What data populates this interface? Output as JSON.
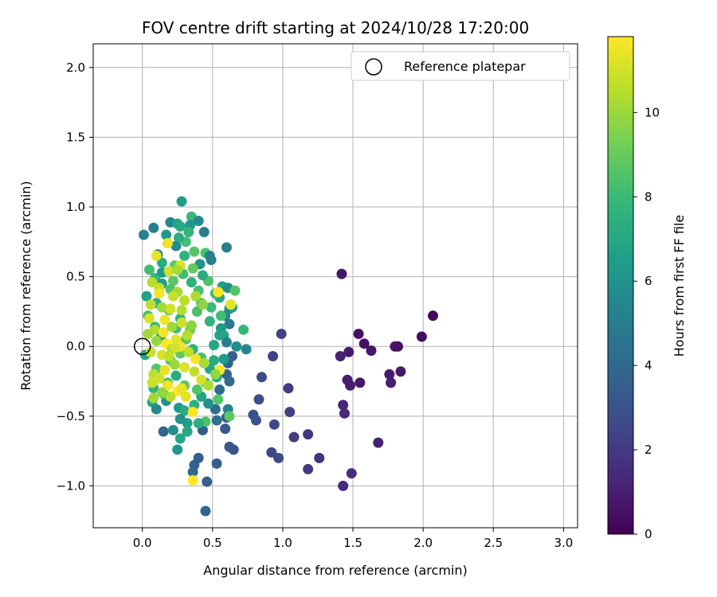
{
  "chart_data": {
    "type": "scatter",
    "title": "FOV centre drift starting at 2024/10/28 17:20:00",
    "xlabel": "Angular distance from reference (arcmin)",
    "ylabel": "Rotation from reference (arcmin)",
    "xlim": [
      -0.35,
      3.1
    ],
    "ylim": [
      -1.3,
      2.17
    ],
    "x_ticks": [
      0.0,
      0.5,
      1.0,
      1.5,
      2.0,
      2.5,
      3.0
    ],
    "x_tick_labels": [
      "0.0",
      "0.5",
      "1.0",
      "1.5",
      "2.0",
      "2.5",
      "3.0"
    ],
    "y_ticks": [
      -1.0,
      -0.5,
      0.0,
      0.5,
      1.0,
      1.5,
      2.0
    ],
    "y_tick_labels": [
      "−1.0",
      "−0.5",
      "0.0",
      "0.5",
      "1.0",
      "1.5",
      "2.0"
    ],
    "grid": true,
    "legend": {
      "placement": "top-right",
      "entries": [
        "Reference platepar"
      ]
    },
    "colorbar": {
      "label": "Hours from first FF file",
      "range": [
        0,
        11.8
      ],
      "ticks": [
        0,
        2,
        4,
        6,
        8,
        10
      ],
      "tick_labels": [
        "0",
        "2",
        "4",
        "6",
        "8",
        "10"
      ],
      "colormap": "viridis"
    },
    "reference_point": {
      "x": 0.0,
      "y": 0.0
    },
    "series": [
      {
        "points": [
          [
            2.07,
            0.22
          ],
          [
            1.99,
            0.07
          ],
          [
            1.82,
            0.0
          ],
          [
            1.8,
            0.0
          ],
          [
            1.84,
            -0.18
          ],
          [
            1.76,
            -0.2
          ],
          [
            1.77,
            -0.26
          ],
          [
            1.68,
            -0.69
          ],
          [
            1.63,
            -0.03
          ],
          [
            1.58,
            0.02
          ],
          [
            1.54,
            0.09
          ],
          [
            1.55,
            -0.26
          ],
          [
            1.47,
            -0.04
          ],
          [
            1.46,
            -0.24
          ],
          [
            1.48,
            -0.28
          ],
          [
            1.42,
            0.52
          ],
          [
            1.41,
            -0.07
          ],
          [
            1.43,
            -0.42
          ],
          [
            1.44,
            -0.48
          ],
          [
            1.43,
            -1.0
          ],
          [
            1.49,
            -0.91
          ],
          [
            1.26,
            -0.8
          ],
          [
            1.18,
            -0.63
          ],
          [
            1.18,
            -0.88
          ],
          [
            1.08,
            -0.65
          ],
          [
            1.04,
            -0.3
          ],
          [
            1.05,
            -0.47
          ],
          [
            0.99,
            0.09
          ],
          [
            0.93,
            -0.07
          ],
          [
            0.94,
            -0.56
          ],
          [
            0.92,
            -0.76
          ],
          [
            0.97,
            -0.8
          ],
          [
            0.85,
            -0.22
          ],
          [
            0.83,
            -0.38
          ],
          [
            0.79,
            -0.49
          ],
          [
            0.81,
            -0.53
          ],
          [
            0.62,
            -0.72
          ],
          [
            0.65,
            -0.74
          ],
          [
            0.6,
            -0.51
          ],
          [
            0.59,
            -0.59
          ],
          [
            0.53,
            -0.84
          ],
          [
            0.43,
            -0.6
          ],
          [
            0.46,
            -0.97
          ],
          [
            0.45,
            -1.18
          ],
          [
            0.4,
            -0.8
          ],
          [
            0.37,
            -0.85
          ],
          [
            0.36,
            -0.9
          ],
          [
            0.15,
            -0.61
          ],
          [
            0.64,
            -0.07
          ],
          [
            0.61,
            -0.12
          ],
          [
            0.6,
            -0.2
          ],
          [
            0.62,
            -0.25
          ],
          [
            0.55,
            -0.31
          ],
          [
            0.52,
            -0.45
          ],
          [
            0.53,
            -0.53
          ]
        ],
        "hours": [
          0.3,
          0.4,
          0.5,
          0.6,
          0.8,
          0.9,
          1.0,
          1.1,
          0.7,
          0.6,
          0.5,
          0.8,
          0.9,
          1.0,
          0.9,
          0.7,
          1.1,
          1.2,
          1.3,
          1.4,
          1.5,
          1.8,
          1.9,
          2.0,
          2.1,
          2.0,
          2.2,
          2.3,
          2.4,
          2.5,
          2.6,
          2.7,
          2.6,
          2.8,
          2.9,
          3.0,
          3.2,
          3.0,
          3.3,
          3.2,
          3.6,
          3.4,
          3.6,
          3.8,
          3.5,
          3.7,
          3.9,
          3.9,
          3.6,
          3.7,
          3.8,
          4.0,
          4.1,
          4.2,
          4.4
        ]
      },
      {
        "points": [
          [
            0.28,
            1.04
          ],
          [
            0.35,
            0.93
          ],
          [
            0.4,
            0.9
          ],
          [
            0.34,
            0.87
          ],
          [
            0.2,
            0.89
          ],
          [
            0.25,
            0.88
          ],
          [
            0.27,
            0.86
          ],
          [
            0.08,
            0.85
          ],
          [
            0.44,
            0.82
          ],
          [
            0.17,
            0.8
          ],
          [
            0.01,
            0.8
          ],
          [
            0.33,
            0.82
          ],
          [
            0.31,
            0.75
          ],
          [
            0.26,
            0.78
          ],
          [
            0.24,
            0.72
          ],
          [
            0.6,
            0.71
          ],
          [
            0.45,
            0.67
          ],
          [
            0.49,
            0.62
          ],
          [
            0.11,
            0.66
          ],
          [
            0.14,
            0.6
          ],
          [
            0.3,
            0.65
          ],
          [
            0.37,
            0.68
          ],
          [
            0.48,
            0.65
          ],
          [
            0.41,
            0.59
          ],
          [
            0.05,
            0.55
          ],
          [
            0.09,
            0.49
          ],
          [
            0.14,
            0.45
          ],
          [
            0.22,
            0.47
          ],
          [
            0.29,
            0.52
          ],
          [
            0.35,
            0.46
          ],
          [
            0.47,
            0.47
          ],
          [
            0.57,
            0.43
          ],
          [
            0.61,
            0.42
          ],
          [
            0.66,
            0.4
          ],
          [
            0.55,
            0.35
          ],
          [
            0.49,
            0.28
          ],
          [
            0.62,
            0.27
          ],
          [
            0.59,
            0.22
          ],
          [
            0.62,
            0.16
          ],
          [
            0.56,
            0.13
          ],
          [
            0.58,
            0.08
          ],
          [
            0.6,
            0.03
          ],
          [
            0.51,
            0.01
          ],
          [
            0.03,
            0.36
          ],
          [
            0.1,
            0.31
          ],
          [
            0.04,
            0.22
          ],
          [
            0.09,
            0.14
          ],
          [
            0.13,
            0.06
          ],
          [
            0.02,
            -0.06
          ],
          [
            0.1,
            -0.16
          ],
          [
            0.08,
            -0.3
          ],
          [
            0.07,
            -0.4
          ],
          [
            0.1,
            -0.45
          ],
          [
            0.17,
            -0.39
          ],
          [
            0.26,
            -0.44
          ],
          [
            0.3,
            -0.46
          ],
          [
            0.37,
            -0.42
          ],
          [
            0.42,
            -0.36
          ],
          [
            0.47,
            -0.41
          ],
          [
            0.54,
            -0.38
          ],
          [
            0.61,
            -0.45
          ],
          [
            0.62,
            -0.5
          ],
          [
            0.45,
            -0.54
          ],
          [
            0.4,
            -0.55
          ],
          [
            0.32,
            -0.55
          ],
          [
            0.27,
            -0.52
          ],
          [
            0.22,
            -0.6
          ],
          [
            0.32,
            -0.61
          ],
          [
            0.27,
            -0.66
          ],
          [
            0.25,
            -0.74
          ],
          [
            0.74,
            -0.02
          ],
          [
            0.67,
            0.0
          ],
          [
            0.72,
            0.12
          ],
          [
            0.64,
            0.28
          ],
          [
            0.56,
            0.22
          ],
          [
            0.48,
            0.18
          ],
          [
            0.42,
            0.31
          ],
          [
            0.39,
            0.25
          ],
          [
            0.27,
            0.2
          ],
          [
            0.19,
            0.26
          ],
          [
            0.24,
            0.13
          ],
          [
            0.31,
            0.05
          ],
          [
            0.36,
            -0.02
          ],
          [
            0.42,
            -0.08
          ],
          [
            0.48,
            -0.16
          ],
          [
            0.53,
            -0.22
          ],
          [
            0.45,
            -0.26
          ],
          [
            0.39,
            -0.31
          ],
          [
            0.3,
            -0.28
          ],
          [
            0.24,
            -0.21
          ],
          [
            0.18,
            -0.26
          ],
          [
            0.15,
            -0.34
          ],
          [
            0.2,
            -0.1
          ],
          [
            0.27,
            -0.05
          ],
          [
            0.34,
            0.12
          ],
          [
            0.4,
            0.4
          ],
          [
            0.52,
            0.38
          ],
          [
            0.2,
            0.41
          ],
          [
            0.14,
            0.53
          ],
          [
            0.23,
            0.58
          ],
          [
            0.36,
            0.56
          ],
          [
            0.43,
            0.51
          ],
          [
            0.58,
            -0.09
          ],
          [
            0.51,
            -0.1
          ],
          [
            0.55,
            0.08
          ]
        ],
        "hours": [
          6.6,
          7.9,
          5.6,
          6.2,
          5.4,
          6.8,
          7.1,
          5.2,
          5.0,
          6.3,
          5.3,
          7.7,
          8.2,
          7.4,
          5.6,
          5.1,
          8.4,
          4.9,
          5.5,
          7.3,
          7.6,
          8.6,
          5.3,
          6.0,
          8.2,
          7.9,
          6.5,
          8.8,
          8.1,
          7.5,
          8.4,
          6.7,
          5.8,
          8.6,
          7.2,
          8.0,
          5.9,
          5.4,
          4.8,
          6.4,
          7.0,
          5.1,
          6.9,
          6.8,
          7.4,
          8.3,
          7.7,
          6.1,
          7.0,
          8.5,
          7.8,
          6.9,
          5.6,
          5.9,
          6.3,
          7.2,
          7.5,
          6.8,
          6.0,
          8.6,
          5.2,
          8.8,
          8.5,
          7.4,
          6.6,
          6.1,
          5.8,
          7.1,
          7.0,
          6.2,
          5.5,
          5.8,
          7.9,
          6.4,
          8.2,
          7.5,
          8.0,
          8.4,
          7.7,
          8.9,
          8.1,
          8.7,
          7.6,
          8.3,
          6.9,
          7.0,
          8.0,
          8.5,
          8.8,
          7.3,
          8.4,
          8.2,
          8.6,
          8.9,
          9.0,
          8.3,
          7.9,
          8.5,
          6.4,
          8.7,
          8.9,
          7.3,
          6.5,
          7.2,
          6.8
        ]
      },
      {
        "points": [
          [
            0.18,
            0.74
          ],
          [
            0.1,
            0.65
          ],
          [
            0.27,
            0.58
          ],
          [
            0.19,
            0.54
          ],
          [
            0.07,
            0.46
          ],
          [
            0.12,
            0.42
          ],
          [
            0.25,
            0.39
          ],
          [
            0.3,
            0.33
          ],
          [
            0.38,
            0.36
          ],
          [
            0.43,
            0.3
          ],
          [
            0.54,
            0.39
          ],
          [
            0.63,
            0.3
          ],
          [
            0.06,
            0.3
          ],
          [
            0.14,
            0.28
          ],
          [
            0.2,
            0.27
          ],
          [
            0.05,
            0.2
          ],
          [
            0.09,
            0.12
          ],
          [
            0.15,
            0.1
          ],
          [
            0.21,
            0.14
          ],
          [
            0.28,
            0.17
          ],
          [
            0.35,
            0.15
          ],
          [
            0.32,
            0.08
          ],
          [
            0.24,
            0.05
          ],
          [
            0.17,
            0.02
          ],
          [
            0.1,
            0.04
          ],
          [
            0.06,
            -0.04
          ],
          [
            0.14,
            -0.06
          ],
          [
            0.21,
            -0.02
          ],
          [
            0.27,
            0.0
          ],
          [
            0.33,
            -0.04
          ],
          [
            0.38,
            -0.09
          ],
          [
            0.44,
            -0.12
          ],
          [
            0.55,
            -0.17
          ],
          [
            0.52,
            -0.2
          ],
          [
            0.37,
            -0.18
          ],
          [
            0.3,
            -0.15
          ],
          [
            0.23,
            -0.13
          ],
          [
            0.16,
            -0.17
          ],
          [
            0.08,
            -0.2
          ],
          [
            0.07,
            -0.26
          ],
          [
            0.12,
            -0.23
          ],
          [
            0.18,
            -0.28
          ],
          [
            0.25,
            -0.32
          ],
          [
            0.31,
            -0.36
          ],
          [
            0.2,
            -0.36
          ],
          [
            0.14,
            -0.33
          ],
          [
            0.08,
            -0.37
          ],
          [
            0.36,
            -0.47
          ],
          [
            0.36,
            -0.96
          ],
          [
            0.23,
            -0.01
          ],
          [
            0.28,
            0.26
          ],
          [
            0.16,
            0.19
          ],
          [
            0.22,
            0.36
          ],
          [
            0.25,
            0.55
          ],
          [
            0.12,
            0.38
          ],
          [
            0.04,
            0.09
          ],
          [
            0.42,
            -0.24
          ],
          [
            0.47,
            -0.28
          ],
          [
            0.28,
            -0.3
          ],
          [
            0.19,
            -0.07
          ]
        ],
        "hours": [
          11.5,
          11.3,
          11.1,
          10.9,
          10.5,
          10.8,
          10.2,
          10.6,
          10.3,
          9.8,
          11.7,
          11.4,
          10.7,
          10.1,
          11.0,
          11.2,
          10.4,
          11.6,
          10.0,
          10.9,
          9.7,
          10.5,
          11.3,
          11.8,
          9.9,
          10.8,
          11.1,
          10.3,
          11.5,
          10.6,
          11.7,
          10.2,
          11.8,
          9.9,
          10.7,
          11.2,
          10.0,
          11.4,
          10.6,
          10.9,
          11.0,
          11.6,
          11.8,
          11.3,
          10.5,
          9.8,
          10.1,
          11.7,
          11.9,
          11.0,
          10.4,
          11.5,
          10.8,
          10.2,
          11.6,
          10.1,
          11.1,
          10.3,
          11.4,
          10.7
        ]
      }
    ]
  }
}
